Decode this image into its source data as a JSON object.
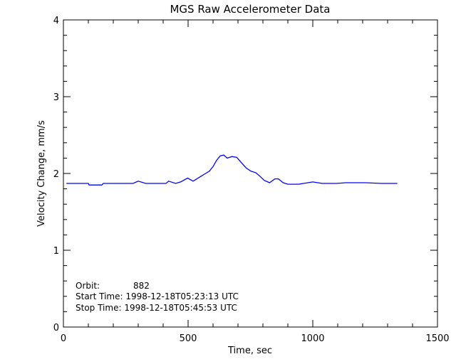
{
  "chart_data": {
    "type": "line",
    "title": "MGS Raw Accelerometer Data",
    "xlabel": "Time, sec",
    "ylabel": "Velocity Change, mm/s",
    "xlim": [
      0,
      1500
    ],
    "ylim": [
      0,
      4
    ],
    "x_ticks": [
      0,
      500,
      1000,
      1500
    ],
    "x_tick_labels": [
      "0",
      "500",
      "1000",
      "1500"
    ],
    "x_minor_step": 100,
    "y_ticks": [
      0,
      1,
      2,
      3,
      4
    ],
    "y_tick_labels": [
      "0",
      "1",
      "2",
      "3",
      "4"
    ],
    "y_minor_step": 0.2,
    "grid": false,
    "line_color": "#0000ff",
    "series": [
      {
        "x": [
          12,
          100,
          103,
          154,
          160,
          279,
          300,
          330,
          411,
          422,
          450,
          470,
          498,
          520,
          550,
          570,
          585,
          600,
          614,
          629,
          643,
          657,
          676,
          695,
          714,
          733,
          752,
          771,
          786,
          805,
          827,
          848,
          862,
          881,
          900,
          943,
          1000,
          1038,
          1095,
          1133,
          1210,
          1276,
          1339
        ],
        "y": [
          1.87,
          1.87,
          1.85,
          1.85,
          1.87,
          1.87,
          1.9,
          1.87,
          1.87,
          1.9,
          1.87,
          1.89,
          1.94,
          1.9,
          1.96,
          2.0,
          2.03,
          2.09,
          2.17,
          2.23,
          2.24,
          2.2,
          2.22,
          2.21,
          2.14,
          2.07,
          2.03,
          2.01,
          1.97,
          1.91,
          1.88,
          1.93,
          1.93,
          1.88,
          1.86,
          1.86,
          1.89,
          1.87,
          1.87,
          1.88,
          1.88,
          1.87,
          1.87
        ]
      }
    ],
    "annotations": {
      "orbit_label": "Orbit:",
      "orbit_value": "882",
      "start_time": "Start Time: 1998-12-18T05:23:13 UTC",
      "stop_time": "Stop Time: 1998-12-18T05:45:53 UTC"
    }
  }
}
